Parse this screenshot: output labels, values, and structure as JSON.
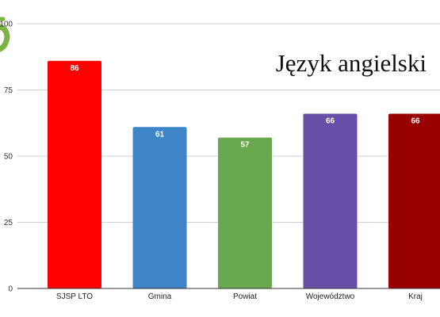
{
  "chart_data": {
    "type": "bar",
    "title": "Język angielski",
    "xlabel": "",
    "ylabel": "",
    "ylim": [
      0,
      100
    ],
    "yticks": [
      0,
      25,
      50,
      75,
      100
    ],
    "grid": true,
    "legend": false,
    "categories": [
      "SJSP LTO",
      "Gmina",
      "Powiat",
      "Województwo",
      "Kraj"
    ],
    "values": [
      86,
      61,
      57,
      66,
      66
    ],
    "colors": [
      "#ff0000",
      "#3d85c6",
      "#6aa84f",
      "#674ea7",
      "#990000"
    ]
  },
  "decor": {
    "logo_color": "#7cb342"
  }
}
